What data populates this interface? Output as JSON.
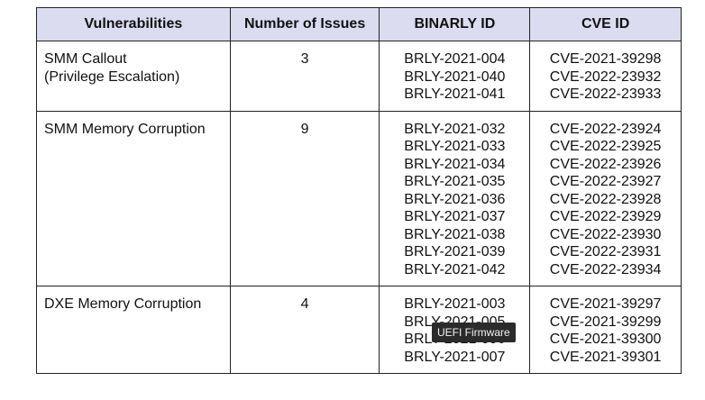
{
  "headers": [
    "Vulnerabilities",
    "Number of Issues",
    "BINARLY ID",
    "CVE ID"
  ],
  "rows": [
    {
      "name": [
        "SMM Callout",
        "(Privilege Escalation)"
      ],
      "count": "3",
      "binarly": [
        "BRLY-2021-004",
        "BRLY-2021-040",
        "BRLY-2021-041"
      ],
      "cve": [
        "CVE-2021-39298",
        "CVE-2022-23932",
        "CVE-2022-23933"
      ]
    },
    {
      "name": [
        "SMM Memory Corruption"
      ],
      "count": "9",
      "binarly": [
        "BRLY-2021-032",
        "BRLY-2021-033",
        "BRLY-2021-034",
        "BRLY-2021-035",
        "BRLY-2021-036",
        "BRLY-2021-037",
        "BRLY-2021-038",
        "BRLY-2021-039",
        "BRLY-2021-042"
      ],
      "cve": [
        "CVE-2022-23924",
        "CVE-2022-23925",
        "CVE-2022-23926",
        "CVE-2022-23927",
        "CVE-2022-23928",
        "CVE-2022-23929",
        "CVE-2022-23930",
        "CVE-2022-23931",
        "CVE-2022-23934"
      ]
    },
    {
      "name": [
        "DXE Memory Corruption"
      ],
      "count": "4",
      "binarly": [
        "BRLY-2021-003",
        "BRLY-2021-005",
        "BRLY-2021-006",
        "BRLY-2021-007"
      ],
      "cve": [
        "CVE-2021-39297",
        "CVE-2021-39299",
        "CVE-2021-39300",
        "CVE-2021-39301"
      ]
    }
  ],
  "tooltip": "UEFI Firmware"
}
